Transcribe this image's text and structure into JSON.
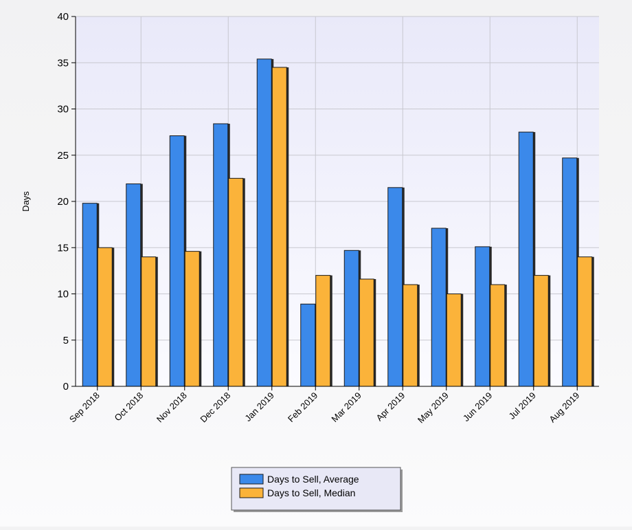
{
  "chart_data": {
    "type": "bar",
    "title": "",
    "xlabel": "",
    "ylabel": "Days",
    "ylim": [
      0,
      40
    ],
    "yticks": [
      0,
      5,
      10,
      15,
      20,
      25,
      30,
      35,
      40
    ],
    "grid": true,
    "legend_position": "bottom-center",
    "categories": [
      "Sep 2018",
      "Oct 2018",
      "Nov 2018",
      "Dec 2018",
      "Jan 2019",
      "Feb 2019",
      "Mar 2019",
      "Apr 2019",
      "May 2019",
      "Jun 2019",
      "Jul 2019",
      "Aug 2019"
    ],
    "series": [
      {
        "name": "Days to Sell, Average",
        "color": "#3b89ea",
        "values": [
          19.8,
          21.9,
          27.1,
          28.4,
          35.4,
          8.9,
          14.7,
          21.5,
          17.1,
          15.1,
          27.5,
          24.7
        ]
      },
      {
        "name": "Days to Sell, Median",
        "color": "#fbb33a",
        "values": [
          15,
          14,
          14.6,
          22.5,
          34.5,
          12,
          11.6,
          11,
          10,
          11,
          12,
          14
        ]
      }
    ]
  }
}
